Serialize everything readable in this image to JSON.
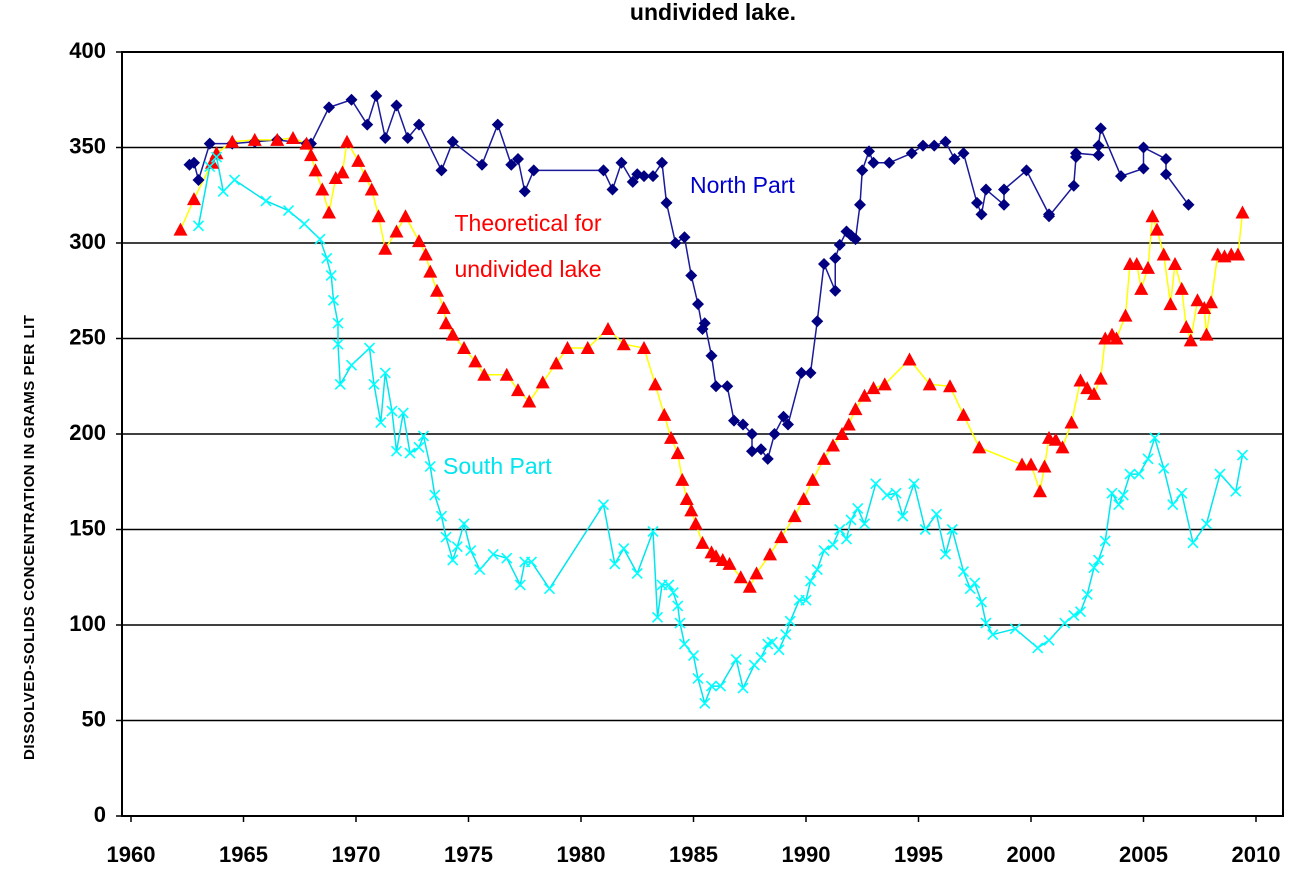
{
  "chart_data": {
    "type": "line",
    "title": "undivided lake.",
    "y_label": "DISSOLVED-SOLIDS CONCENTRATION IN GRAMS PER LIT",
    "xlim": [
      1959.6,
      2011.2
    ],
    "xticks": [
      1960,
      1965,
      1970,
      1975,
      1980,
      1985,
      1990,
      1995,
      2000,
      2005,
      2010
    ],
    "ylim": [
      0,
      400
    ],
    "yticks": [
      0,
      50,
      100,
      150,
      200,
      250,
      300,
      350,
      400
    ],
    "grid": true,
    "series": [
      {
        "name": "North Part",
        "color": "#000080",
        "line_color": "#1a1a9a",
        "marker": "diamond",
        "x": [
          1962.6,
          1962.8,
          1963.0,
          1963.5,
          1964.5,
          1965.5,
          1966.5,
          1967.8,
          1968.0,
          1968.8,
          1969.8,
          1970.5,
          1970.9,
          1971.3,
          1971.8,
          1972.3,
          1972.8,
          1973.8,
          1974.3,
          1975.6,
          1976.3,
          1976.9,
          1977.2,
          1977.5,
          1977.9,
          1981.0,
          1981.4,
          1981.8,
          1982.3,
          1982.5,
          1982.8,
          1983.2,
          1983.6,
          1983.8,
          1984.2,
          1984.6,
          1984.9,
          1985.2,
          1985.4,
          1985.5,
          1985.8,
          1986.0,
          1986.5,
          1986.8,
          1987.2,
          1987.6,
          1987.6,
          1988.0,
          1988.3,
          1988.6,
          1989.0,
          1989.2,
          1989.8,
          1990.2,
          1990.5,
          1990.8,
          1991.3,
          1991.3,
          1991.5,
          1991.8,
          1992.0,
          1992.2,
          1992.4,
          1992.5,
          1992.8,
          1993.0,
          1993.7,
          1994.7,
          1995.2,
          1995.7,
          1996.2,
          1996.6,
          1997.0,
          1997.6,
          1997.8,
          1998.0,
          1998.8,
          1998.8,
          1999.8,
          2000.8,
          2000.8,
          2001.9,
          2002.0,
          2002.0,
          2003.0,
          2003.0,
          2003.1,
          2004.0,
          2005.0,
          2005.0,
          2006.0,
          2006.0,
          2007.0
        ],
        "values": [
          341,
          342,
          333,
          352,
          352,
          353,
          354,
          352,
          352,
          371,
          375,
          362,
          377,
          355,
          372,
          355,
          362,
          338,
          353,
          341,
          362,
          341,
          344,
          327,
          338,
          338,
          328,
          342,
          332,
          336,
          335,
          335,
          342,
          321,
          300,
          303,
          283,
          268,
          255,
          258,
          241,
          225,
          225,
          207,
          205,
          200,
          191,
          192,
          187,
          200,
          209,
          205,
          232,
          232,
          259,
          289,
          275,
          292,
          299,
          306,
          304,
          302,
          320,
          338,
          348,
          342,
          342,
          347,
          351,
          351,
          353,
          344,
          347,
          321,
          315,
          328,
          320,
          328,
          338,
          315,
          314,
          330,
          345,
          347,
          346,
          351,
          360,
          335,
          339,
          350,
          344,
          336,
          320
        ]
      },
      {
        "name": "Theoretical for undivided lake",
        "color": "#ff0000",
        "line_color": "#ffff00",
        "marker": "triangle",
        "x": [
          1962.2,
          1962.8,
          1963.6,
          1963.8,
          1964.5,
          1965.5,
          1966.5,
          1967.2,
          1967.8,
          1968.0,
          1968.2,
          1968.5,
          1968.8,
          1969.1,
          1969.4,
          1969.6,
          1970.1,
          1970.4,
          1970.7,
          1971.0,
          1971.3,
          1971.8,
          1972.2,
          1972.8,
          1973.1,
          1973.3,
          1973.6,
          1973.9,
          1974.0,
          1974.3,
          1974.8,
          1975.3,
          1975.7,
          1976.7,
          1977.2,
          1977.7,
          1978.3,
          1978.9,
          1979.4,
          1980.3,
          1981.2,
          1981.9,
          1982.8,
          1983.3,
          1983.7,
          1984.0,
          1984.3,
          1984.5,
          1984.7,
          1984.9,
          1985.1,
          1985.4,
          1985.8,
          1986.0,
          1986.3,
          1986.6,
          1987.1,
          1987.5,
          1987.8,
          1988.4,
          1988.9,
          1989.5,
          1989.9,
          1990.3,
          1990.8,
          1991.2,
          1991.6,
          1991.9,
          1992.2,
          1992.6,
          1993.0,
          1993.5,
          1994.6,
          1995.5,
          1996.4,
          1997.0,
          1997.7,
          1999.6,
          2000.0,
          2000.4,
          2000.6,
          2000.8,
          2001.1,
          2001.4,
          2001.8,
          2002.2,
          2002.5,
          2002.8,
          2003.1,
          2003.3,
          2003.6,
          2003.8,
          2004.2,
          2004.4,
          2004.7,
          2004.9,
          2005.2,
          2005.4,
          2005.6,
          2005.9,
          2006.2,
          2006.4,
          2006.7,
          2006.9,
          2007.1,
          2007.4,
          2007.7,
          2007.8,
          2008.0,
          2008.3,
          2008.6,
          2008.9,
          2009.2,
          2009.4
        ],
        "values": [
          307,
          323,
          342,
          347,
          353,
          354,
          354,
          355,
          352,
          346,
          338,
          328,
          316,
          334,
          337,
          353,
          343,
          335,
          328,
          314,
          297,
          306,
          314,
          301,
          294,
          285,
          275,
          266,
          258,
          252,
          245,
          238,
          231,
          231,
          223,
          217,
          227,
          237,
          245,
          245,
          255,
          247,
          245,
          226,
          210,
          198,
          190,
          176,
          166,
          160,
          153,
          143,
          138,
          136,
          134,
          132,
          125,
          120,
          127,
          137,
          146,
          157,
          166,
          176,
          187,
          194,
          200,
          205,
          213,
          220,
          224,
          226,
          239,
          226,
          225,
          210,
          193,
          184,
          184,
          170,
          183,
          198,
          197,
          193,
          206,
          228,
          224,
          221,
          229,
          250,
          252,
          250,
          262,
          289,
          289,
          276,
          287,
          314,
          307,
          294,
          268,
          289,
          276,
          256,
          249,
          270,
          266,
          252,
          269,
          294,
          293,
          294,
          294,
          316
        ]
      },
      {
        "name": "South Part",
        "color": "#00ffff",
        "line_color": "#00e5ee",
        "marker": "x",
        "x": [
          1963.0,
          1963.5,
          1963.8,
          1964.1,
          1964.6,
          1966.0,
          1967.0,
          1967.7,
          1968.4,
          1968.7,
          1968.9,
          1969.0,
          1969.2,
          1969.2,
          1969.3,
          1969.8,
          1970.6,
          1970.8,
          1971.1,
          1971.3,
          1971.6,
          1971.8,
          1972.1,
          1972.4,
          1972.8,
          1973.0,
          1973.3,
          1973.5,
          1973.8,
          1974.0,
          1974.3,
          1974.5,
          1974.8,
          1975.1,
          1975.5,
          1976.1,
          1976.7,
          1977.3,
          1977.5,
          1977.8,
          1978.6,
          1981.0,
          1981.5,
          1981.9,
          1982.5,
          1983.2,
          1983.4,
          1983.6,
          1983.9,
          1984.1,
          1984.3,
          1984.4,
          1984.6,
          1985.0,
          1985.2,
          1985.5,
          1985.8,
          1986.2,
          1986.9,
          1987.2,
          1987.7,
          1988.0,
          1988.3,
          1988.5,
          1988.8,
          1989.1,
          1989.3,
          1989.7,
          1990.0,
          1990.2,
          1990.5,
          1990.8,
          1991.2,
          1991.5,
          1991.8,
          1992.0,
          1992.3,
          1992.6,
          1993.1,
          1993.6,
          1994.0,
          1994.3,
          1994.8,
          1995.3,
          1995.8,
          1996.2,
          1996.5,
          1997.0,
          1997.3,
          1997.5,
          1997.8,
          1998.0,
          1998.3,
          1999.3,
          2000.3,
          2000.8,
          2001.5,
          2001.9,
          2002.2,
          2002.5,
          2002.8,
          2003.0,
          2003.3,
          2003.6,
          2003.9,
          2004.1,
          2004.4,
          2004.8,
          2005.2,
          2005.5,
          2005.9,
          2006.3,
          2006.7,
          2007.2,
          2007.8,
          2008.4,
          2009.1,
          2009.4
        ],
        "values": [
          309,
          340,
          345,
          327,
          333,
          322,
          317,
          310,
          302,
          292,
          283,
          270,
          258,
          247,
          226,
          236,
          245,
          226,
          206,
          232,
          212,
          191,
          211,
          190,
          193,
          199,
          183,
          168,
          157,
          146,
          134,
          141,
          153,
          139,
          129,
          137,
          135,
          121,
          133,
          133,
          119,
          163,
          132,
          140,
          127,
          149,
          104,
          121,
          121,
          117,
          110,
          101,
          90,
          84,
          72,
          59,
          68,
          68,
          82,
          67,
          79,
          83,
          90,
          91,
          87,
          95,
          102,
          113,
          113,
          123,
          129,
          139,
          142,
          150,
          145,
          155,
          161,
          153,
          174,
          168,
          169,
          157,
          174,
          150,
          158,
          137,
          150,
          128,
          119,
          122,
          112,
          101,
          95,
          98,
          88,
          92,
          101,
          105,
          107,
          116,
          130,
          134,
          144,
          169,
          163,
          168,
          179,
          179,
          187,
          198,
          182,
          163,
          169,
          143,
          153,
          179,
          170,
          189
        ]
      }
    ]
  }
}
